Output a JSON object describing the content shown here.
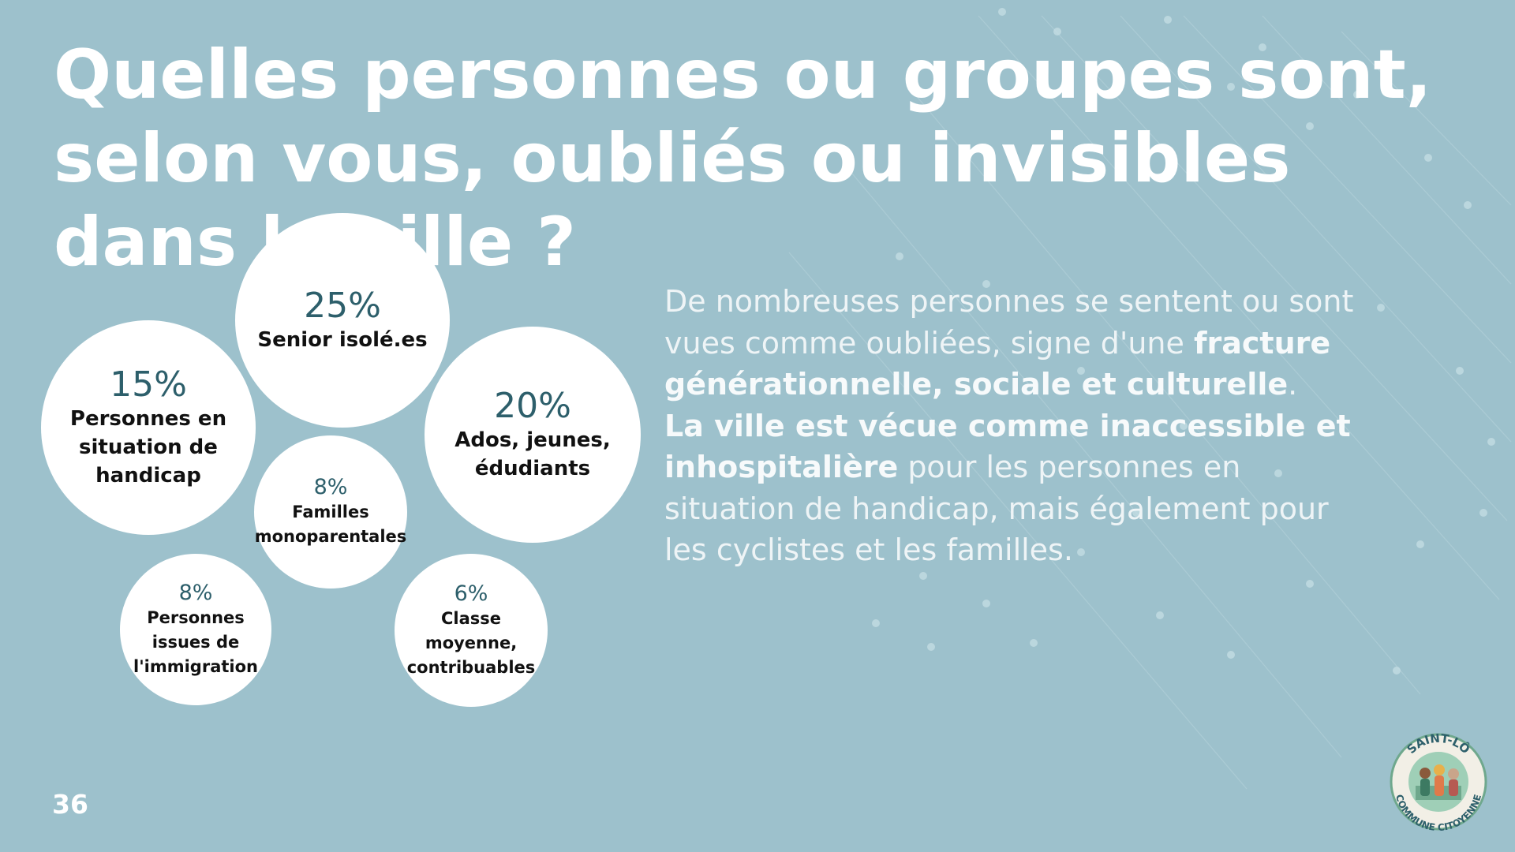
{
  "slide": {
    "title": "Quelles personnes ou groupes sont, selon vous, oubliés ou invisibles dans la ville ?",
    "page_number": "36",
    "colors": {
      "background": "#9dc1cc",
      "bubble": "#ffffff",
      "percent": "#2d5f6b",
      "text": "#ffffff"
    }
  },
  "chart_data": {
    "type": "bubble",
    "title": "Quelles personnes ou groupes sont, selon vous, oubliés ou invisibles dans la ville ?",
    "unit": "%",
    "items": [
      {
        "label": "Senior isolé.es",
        "value": 25,
        "display": "25%"
      },
      {
        "label": "Personnes en situation de handicap",
        "value": 15,
        "display": "15%"
      },
      {
        "label": "Ados, jeunes, édudiants",
        "value": 20,
        "display": "20%"
      },
      {
        "label": "Familles monoparentales",
        "value": 8,
        "display": "8%"
      },
      {
        "label": "Personnes issues de l'immigration",
        "value": 8,
        "display": "8%"
      },
      {
        "label": "Classe moyenne, contribuables",
        "value": 6,
        "display": "6%"
      }
    ]
  },
  "description": {
    "p1_a": "De nombreuses personnes se sentent ou sont vues comme oubliées, signe d'une ",
    "p1_b": "fracture générationnelle, sociale et culturelle",
    "p1_c": ".",
    "p2_a": "La ville est vécue comme inaccessible et inhospitalière",
    "p2_b": " pour les personnes en situation de handicap, mais également pour les cyclistes et les familles."
  },
  "logo": {
    "text_top": "SAINT-LÔ",
    "text_bottom": "COMMUNE CITOYENNE",
    "colors": {
      "ring": "#6fa88d",
      "text": "#2d5f6b",
      "fill": "#f2efe6"
    }
  }
}
